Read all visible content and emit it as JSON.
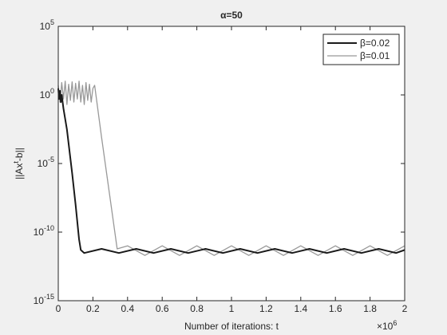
{
  "chart_data": {
    "type": "line",
    "title": "α=50",
    "xlabel": "Number of iterations: t",
    "x_scale_label": {
      "base": "×10",
      "exponent": "6"
    },
    "ylabel": {
      "before": "||Ax",
      "superscript": "t",
      "after": "-b||"
    },
    "xlim": [
      0,
      2
    ],
    "xticks": [
      0,
      0.2,
      0.4,
      0.6,
      0.8,
      1,
      1.2,
      1.4,
      1.6,
      1.8,
      2
    ],
    "ylim": [
      1e-15,
      100000
    ],
    "yscale": "log",
    "yticks": [
      {
        "value": 1e-15,
        "label": "10",
        "exponent": "-15"
      },
      {
        "value": 1e-10,
        "label": "10",
        "exponent": "-10"
      },
      {
        "value": 1e-05,
        "label": "10",
        "exponent": "-5"
      },
      {
        "value": 1,
        "label": "10",
        "exponent": "0"
      },
      {
        "value": 100000,
        "label": "10",
        "exponent": "5"
      }
    ],
    "legend": "upper right",
    "series": [
      {
        "name": "β=0.02",
        "color": "#1a1a1a",
        "x": [
          0,
          0.005,
          0.01,
          0.015,
          0.02,
          0.03,
          0.05,
          0.08,
          0.1,
          0.12,
          0.13,
          0.15,
          0.25,
          0.35,
          0.45,
          0.55,
          0.65,
          0.75,
          0.85,
          0.95,
          1.05,
          1.15,
          1.25,
          1.35,
          1.45,
          1.55,
          1.65,
          1.75,
          1.85,
          1.95,
          2
        ],
        "values": [
          3,
          0.5,
          2,
          0.3,
          1,
          0.1,
          0.003,
          2e-06,
          1e-08,
          3e-11,
          5e-12,
          3e-12,
          6e-12,
          3e-12,
          6e-12,
          3e-12,
          6e-12,
          3e-12,
          6e-12,
          3e-12,
          6e-12,
          3e-12,
          6e-12,
          3e-12,
          6e-12,
          3e-12,
          6e-12,
          3e-12,
          6e-12,
          3e-12,
          5e-12
        ]
      },
      {
        "name": "β=0.01",
        "color": "#999999",
        "x": [
          0,
          0.01,
          0.02,
          0.03,
          0.04,
          0.05,
          0.06,
          0.07,
          0.08,
          0.09,
          0.1,
          0.11,
          0.12,
          0.13,
          0.14,
          0.15,
          0.16,
          0.17,
          0.18,
          0.19,
          0.2,
          0.21,
          0.25,
          0.3,
          0.34,
          0.4,
          0.5,
          0.6,
          0.7,
          0.8,
          0.9,
          1,
          1.1,
          1.2,
          1.3,
          1.4,
          1.5,
          1.6,
          1.7,
          1.8,
          1.9,
          2
        ],
        "values": [
          5,
          0.3,
          8,
          0.5,
          10,
          0.2,
          6,
          0.4,
          9,
          0.3,
          7,
          0.5,
          10,
          0.3,
          5,
          0.2,
          8,
          0.4,
          6,
          0.3,
          3,
          5,
          0.0008,
          2.5e-08,
          6e-12,
          1e-11,
          2e-12,
          1e-11,
          2e-12,
          1e-11,
          2e-12,
          1e-11,
          2e-12,
          1e-11,
          2e-12,
          1e-11,
          2e-12,
          1e-11,
          2e-12,
          1e-11,
          2e-12,
          1e-11
        ]
      }
    ]
  }
}
